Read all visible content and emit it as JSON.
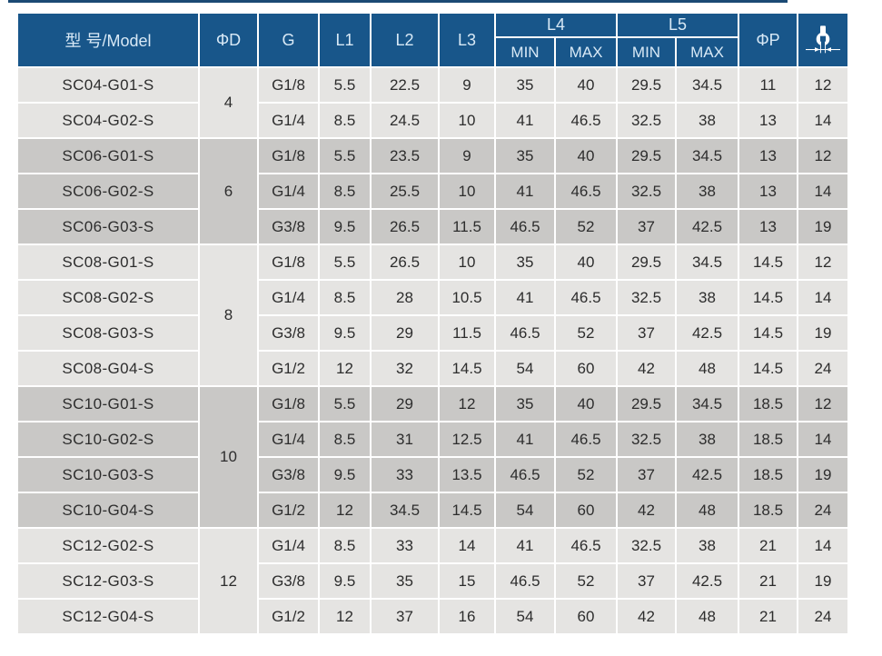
{
  "colors": {
    "page_bg": "#ffffff",
    "top_strip": "#1b4a74",
    "header_bg": "#18568a",
    "header_text": "#d8e9f6",
    "band_light": "#e5e4e2",
    "band_dark": "#c9c8c6",
    "cell_text": "#2d2d2d",
    "grid_line": "#ffffff"
  },
  "icons": {
    "wrench": "wrench-size-icon"
  },
  "table": {
    "header": {
      "model": "型 号/Model",
      "d": "ΦD",
      "g": "G",
      "l1": "L1",
      "l2": "L2",
      "l3": "L3",
      "l4": "L4",
      "l5": "L5",
      "min": "MIN",
      "max": "MAX",
      "p": "ΦP"
    },
    "groups": [
      {
        "d": "4",
        "shade": "light",
        "rows": [
          {
            "model": "SC04-G01-S",
            "g": "G1/8",
            "l1": "5.5",
            "l2": "22.5",
            "l3": "9",
            "l4min": "35",
            "l4max": "40",
            "l5min": "29.5",
            "l5max": "34.5",
            "p": "11",
            "wrench": "12"
          },
          {
            "model": "SC04-G02-S",
            "g": "G1/4",
            "l1": "8.5",
            "l2": "24.5",
            "l3": "10",
            "l4min": "41",
            "l4max": "46.5",
            "l5min": "32.5",
            "l5max": "38",
            "p": "13",
            "wrench": "14"
          }
        ]
      },
      {
        "d": "6",
        "shade": "dark",
        "rows": [
          {
            "model": "SC06-G01-S",
            "g": "G1/8",
            "l1": "5.5",
            "l2": "23.5",
            "l3": "9",
            "l4min": "35",
            "l4max": "40",
            "l5min": "29.5",
            "l5max": "34.5",
            "p": "13",
            "wrench": "12"
          },
          {
            "model": "SC06-G02-S",
            "g": "G1/4",
            "l1": "8.5",
            "l2": "25.5",
            "l3": "10",
            "l4min": "41",
            "l4max": "46.5",
            "l5min": "32.5",
            "l5max": "38",
            "p": "13",
            "wrench": "14"
          },
          {
            "model": "SC06-G03-S",
            "g": "G3/8",
            "l1": "9.5",
            "l2": "26.5",
            "l3": "11.5",
            "l4min": "46.5",
            "l4max": "52",
            "l5min": "37",
            "l5max": "42.5",
            "p": "13",
            "wrench": "19"
          }
        ]
      },
      {
        "d": "8",
        "shade": "light",
        "rows": [
          {
            "model": "SC08-G01-S",
            "g": "G1/8",
            "l1": "5.5",
            "l2": "26.5",
            "l3": "10",
            "l4min": "35",
            "l4max": "40",
            "l5min": "29.5",
            "l5max": "34.5",
            "p": "14.5",
            "wrench": "12"
          },
          {
            "model": "SC08-G02-S",
            "g": "G1/4",
            "l1": "8.5",
            "l2": "28",
            "l3": "10.5",
            "l4min": "41",
            "l4max": "46.5",
            "l5min": "32.5",
            "l5max": "38",
            "p": "14.5",
            "wrench": "14"
          },
          {
            "model": "SC08-G03-S",
            "g": "G3/8",
            "l1": "9.5",
            "l2": "29",
            "l3": "11.5",
            "l4min": "46.5",
            "l4max": "52",
            "l5min": "37",
            "l5max": "42.5",
            "p": "14.5",
            "wrench": "19"
          },
          {
            "model": "SC08-G04-S",
            "g": "G1/2",
            "l1": "12",
            "l2": "32",
            "l3": "14.5",
            "l4min": "54",
            "l4max": "60",
            "l5min": "42",
            "l5max": "48",
            "p": "14.5",
            "wrench": "24"
          }
        ]
      },
      {
        "d": "10",
        "shade": "dark",
        "rows": [
          {
            "model": "SC10-G01-S",
            "g": "G1/8",
            "l1": "5.5",
            "l2": "29",
            "l3": "12",
            "l4min": "35",
            "l4max": "40",
            "l5min": "29.5",
            "l5max": "34.5",
            "p": "18.5",
            "wrench": "12"
          },
          {
            "model": "SC10-G02-S",
            "g": "G1/4",
            "l1": "8.5",
            "l2": "31",
            "l3": "12.5",
            "l4min": "41",
            "l4max": "46.5",
            "l5min": "32.5",
            "l5max": "38",
            "p": "18.5",
            "wrench": "14"
          },
          {
            "model": "SC10-G03-S",
            "g": "G3/8",
            "l1": "9.5",
            "l2": "33",
            "l3": "13.5",
            "l4min": "46.5",
            "l4max": "52",
            "l5min": "37",
            "l5max": "42.5",
            "p": "18.5",
            "wrench": "19"
          },
          {
            "model": "SC10-G04-S",
            "g": "G1/2",
            "l1": "12",
            "l2": "34.5",
            "l3": "14.5",
            "l4min": "54",
            "l4max": "60",
            "l5min": "42",
            "l5max": "48",
            "p": "18.5",
            "wrench": "24"
          }
        ]
      },
      {
        "d": "12",
        "shade": "light",
        "rows": [
          {
            "model": "SC12-G02-S",
            "g": "G1/4",
            "l1": "8.5",
            "l2": "33",
            "l3": "14",
            "l4min": "41",
            "l4max": "46.5",
            "l5min": "32.5",
            "l5max": "38",
            "p": "21",
            "wrench": "14"
          },
          {
            "model": "SC12-G03-S",
            "g": "G3/8",
            "l1": "9.5",
            "l2": "35",
            "l3": "15",
            "l4min": "46.5",
            "l4max": "52",
            "l5min": "37",
            "l5max": "42.5",
            "p": "21",
            "wrench": "19"
          },
          {
            "model": "SC12-G04-S",
            "g": "G1/2",
            "l1": "12",
            "l2": "37",
            "l3": "16",
            "l4min": "54",
            "l4max": "60",
            "l5min": "42",
            "l5max": "48",
            "p": "21",
            "wrench": "24"
          }
        ]
      }
    ]
  }
}
